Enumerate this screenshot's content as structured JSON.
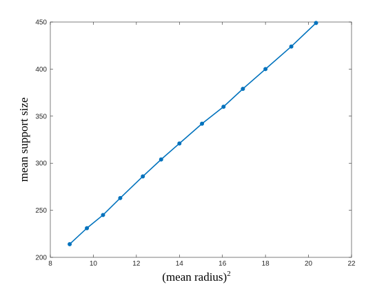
{
  "chart_data": {
    "type": "line",
    "xlabel": "(mean radius)",
    "xlabel_superscript": "2",
    "ylabel": "mean support size",
    "xlim": [
      8,
      22
    ],
    "ylim": [
      200,
      450
    ],
    "xticks": [
      "8",
      "10",
      "12",
      "14",
      "16",
      "18",
      "20",
      "22"
    ],
    "yticks": [
      "200",
      "250",
      "300",
      "350",
      "400",
      "450"
    ],
    "grid": false,
    "legend": "none",
    "color": "#0072bd",
    "series": [
      {
        "x": [
          8.9,
          9.7,
          10.45,
          11.25,
          12.3,
          13.15,
          14.0,
          15.05,
          16.05,
          16.95,
          18.0,
          19.2,
          20.35
        ],
        "y": [
          214,
          231,
          245,
          263,
          286,
          304,
          321,
          342,
          360,
          379,
          400,
          424,
          449
        ]
      }
    ]
  }
}
